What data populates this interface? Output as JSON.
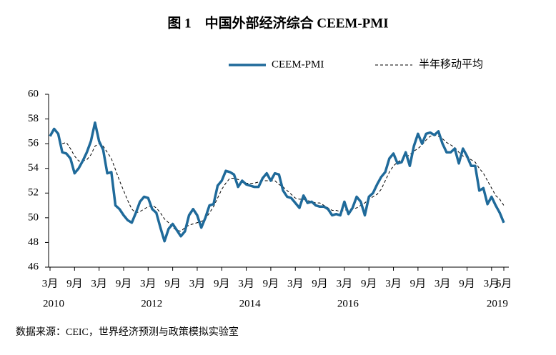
{
  "chart_data": {
    "type": "line",
    "title": "图 1　中国外部经济综合 CEEM-PMI",
    "source": "数据来源：CEIC，世界经济预测与政策模拟实验室",
    "categories": [
      "3月",
      null,
      null,
      null,
      null,
      null,
      "9月",
      null,
      null,
      null,
      null,
      null,
      "3月",
      null,
      null,
      null,
      null,
      null,
      "9月",
      null,
      null,
      null,
      null,
      null,
      "3月",
      null,
      null,
      null,
      null,
      null,
      "9月",
      null,
      null,
      null,
      null,
      null,
      "3月",
      null,
      null,
      null,
      null,
      null,
      "9月",
      null,
      null,
      null,
      null,
      null,
      "3月",
      null,
      null,
      null,
      null,
      null,
      "9月",
      null,
      null,
      null,
      null,
      null,
      "3月",
      null,
      null,
      null,
      null,
      null,
      "9月",
      null,
      null,
      null,
      null,
      null,
      "3月",
      null,
      null,
      null,
      null,
      null,
      "9月",
      null,
      null,
      null,
      null,
      null,
      "3月",
      null,
      null,
      null,
      null,
      null,
      "9月",
      null,
      null,
      null,
      null,
      null,
      "3月",
      null,
      null,
      null,
      null,
      null,
      "9月",
      null,
      null,
      null,
      null,
      null,
      "3月",
      null,
      null,
      "6月"
    ],
    "x_years": [
      "2010",
      null,
      null,
      null,
      null,
      null,
      null,
      null,
      null,
      null,
      null,
      null,
      null,
      null,
      null,
      null,
      null,
      null,
      null,
      null,
      null,
      null,
      null,
      null,
      "2012",
      null,
      null,
      null,
      null,
      null,
      null,
      null,
      null,
      null,
      null,
      null,
      null,
      null,
      null,
      null,
      null,
      null,
      null,
      null,
      null,
      null,
      null,
      null,
      "2014",
      null,
      null,
      null,
      null,
      null,
      null,
      null,
      null,
      null,
      null,
      null,
      null,
      null,
      null,
      null,
      null,
      null,
      null,
      null,
      null,
      null,
      null,
      null,
      "2016",
      null,
      null,
      null,
      null,
      null,
      null,
      null,
      null,
      null,
      null,
      null,
      null,
      null,
      null,
      null,
      null,
      null,
      null,
      null,
      null,
      null,
      null,
      null,
      null,
      null,
      null,
      null,
      null,
      null,
      null,
      null,
      null,
      null,
      null,
      null,
      "2019",
      null,
      null,
      null
    ],
    "series": [
      {
        "name": "CEEM-PMI",
        "color": "#1f6a9a",
        "style": "solid",
        "values": [
          56.6,
          57.2,
          56.8,
          55.3,
          55.2,
          54.8,
          53.6,
          54.0,
          54.6,
          55.3,
          56.2,
          57.7,
          56.2,
          55.5,
          53.6,
          53.7,
          51.0,
          50.7,
          50.2,
          49.8,
          49.6,
          50.4,
          51.3,
          51.7,
          51.6,
          50.7,
          50.4,
          49.2,
          48.1,
          49.1,
          49.5,
          49.0,
          48.5,
          48.9,
          50.2,
          50.7,
          50.2,
          49.2,
          50.0,
          51.0,
          51.1,
          52.6,
          53.0,
          53.8,
          53.7,
          53.5,
          52.5,
          53.0,
          52.7,
          52.6,
          52.5,
          52.5,
          53.2,
          53.6,
          53.0,
          53.6,
          53.5,
          52.2,
          51.7,
          51.6,
          51.2,
          50.8,
          51.8,
          51.2,
          51.3,
          51.0,
          50.9,
          50.9,
          50.7,
          50.2,
          50.3,
          50.2,
          51.3,
          50.3,
          50.8,
          51.7,
          51.3,
          50.2,
          51.7,
          52.0,
          52.7,
          53.3,
          53.7,
          54.8,
          55.2,
          54.4,
          54.5,
          55.3,
          54.2,
          55.8,
          56.8,
          56.0,
          56.8,
          56.9,
          56.7,
          57.0,
          56.0,
          55.3,
          55.3,
          55.6,
          54.4,
          55.6,
          55.0,
          54.2,
          54.2,
          52.2,
          52.4,
          51.1,
          51.7,
          51.0,
          50.4,
          49.6
        ]
      },
      {
        "name": "半年移动平均",
        "color": "#000000",
        "style": "dashed",
        "values": [
          null,
          null,
          null,
          56.0,
          56.1,
          55.6,
          55.0,
          54.6,
          54.6,
          54.7,
          55.1,
          55.8,
          56.0,
          55.8,
          55.3,
          54.8,
          53.9,
          53.0,
          52.2,
          51.4,
          50.7,
          50.4,
          50.5,
          50.7,
          50.9,
          51.0,
          50.8,
          50.4,
          49.9,
          49.6,
          49.2,
          49.0,
          48.9,
          49.2,
          49.4,
          49.5,
          49.6,
          49.7,
          49.9,
          50.4,
          50.9,
          51.6,
          52.3,
          52.8,
          53.2,
          53.2,
          53.1,
          53.0,
          52.8,
          52.8,
          52.8,
          52.9,
          53.0,
          53.0,
          53.0,
          53.0,
          52.7,
          52.5,
          52.2,
          51.9,
          51.6,
          51.5,
          51.5,
          51.4,
          51.3,
          51.2,
          51.2,
          51.0,
          50.8,
          50.6,
          50.6,
          50.5,
          50.6,
          50.7,
          50.7,
          50.8,
          51.0,
          51.2,
          51.5,
          51.7,
          51.9,
          52.3,
          53.0,
          53.7,
          54.2,
          54.5,
          54.7,
          54.9,
          55.1,
          55.4,
          55.6,
          55.9,
          56.3,
          56.6,
          56.7,
          56.6,
          56.4,
          56.1,
          55.9,
          55.7,
          55.3,
          55.0,
          54.9,
          54.7,
          54.5,
          54.0,
          53.6,
          53.0,
          52.4,
          51.8,
          51.5,
          51.0
        ]
      }
    ],
    "ylim": [
      46,
      60
    ],
    "yticks": [
      46,
      48,
      50,
      52,
      54,
      56,
      58,
      60
    ],
    "grid": false,
    "legend": "top-right"
  }
}
